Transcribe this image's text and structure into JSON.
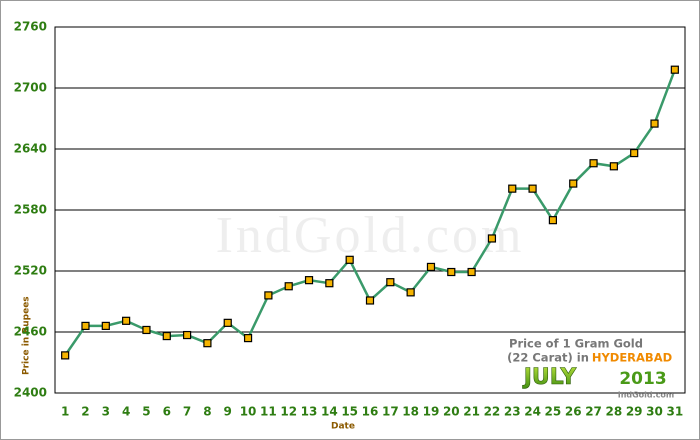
{
  "chart_data": {
    "type": "line",
    "title": "Price of 1 Gram Gold",
    "subtitle": "(22 Carat) in",
    "location": "HYDERABAD",
    "month": "JULY",
    "year": "2013",
    "source": "IndGold.com",
    "watermark": "IndGold.com",
    "y_label": "Price in Rupees",
    "x_label": "Date",
    "categories": [
      "1",
      "2",
      "3",
      "4",
      "5",
      "6",
      "7",
      "8",
      "9",
      "10",
      "11",
      "12",
      "13",
      "14",
      "15",
      "16",
      "17",
      "18",
      "19",
      "20",
      "21",
      "22",
      "23",
      "24",
      "25",
      "26",
      "27",
      "28",
      "29",
      "30",
      "31"
    ],
    "values": [
      2437,
      2466,
      2466,
      2471,
      2462,
      2456,
      2457,
      2449,
      2469,
      2454,
      2496,
      2505,
      2511,
      2508,
      2531,
      2491,
      2509,
      2499,
      2524,
      2519,
      2519,
      2552,
      2601,
      2601,
      2570,
      2606,
      2626,
      2623,
      2636,
      2665,
      2718
    ],
    "color": "#3a9a6a",
    "marker_color": "#f5b400",
    "ylim": [
      2400,
      2760
    ],
    "yticks": [
      2400,
      2460,
      2520,
      2580,
      2640,
      2700,
      2760
    ],
    "grid": true
  }
}
